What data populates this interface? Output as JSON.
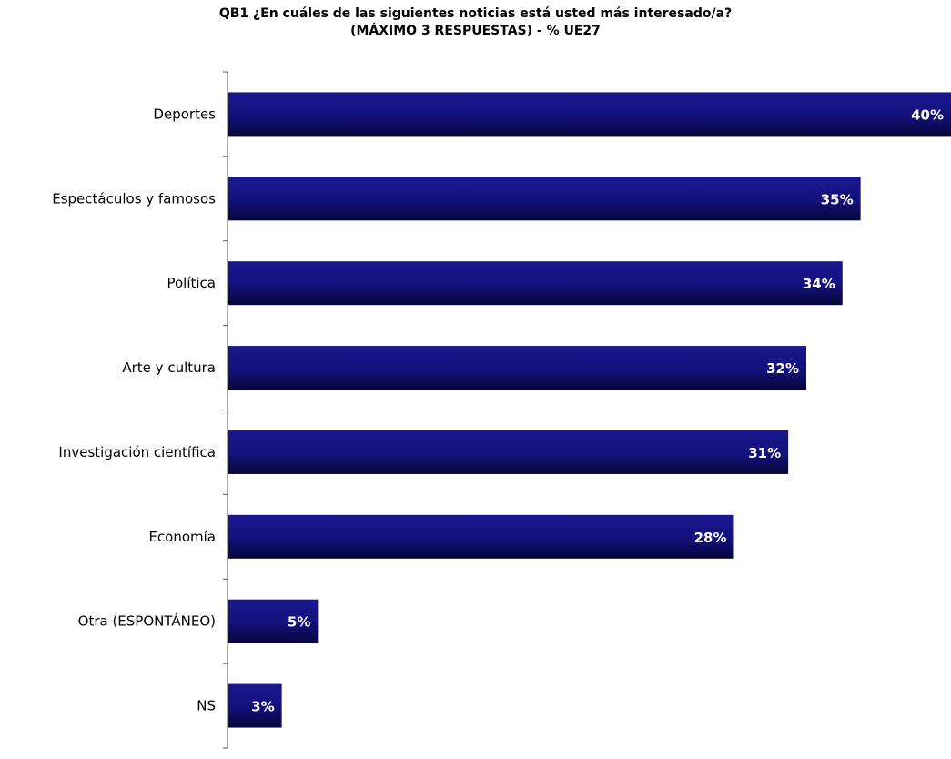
{
  "chart_data": {
    "type": "bar",
    "orientation": "horizontal",
    "title": [
      "QB1 ¿En cuáles de las siguientes noticias está usted más interesado/a?",
      "(MÁXIMO 3 RESPUESTAS) - % UE27"
    ],
    "categories": [
      "Deportes",
      "Espectáculos y famosos",
      "Política",
      "Arte y cultura",
      "Investigación científica",
      "Economía",
      "Otra (ESPONTÁNEO)",
      "NS"
    ],
    "values": [
      40,
      35,
      34,
      32,
      31,
      28,
      5,
      3
    ],
    "data_labels": [
      "40%",
      "35%",
      "34%",
      "32%",
      "31%",
      "28%",
      "5%",
      "3%"
    ],
    "xlim": [
      0,
      40
    ],
    "grid": false,
    "legend": "none",
    "colors": {
      "bar_main": "#14127a",
      "bar_edge": "#05052e",
      "label_text": "#ffffff",
      "axis": "#555555"
    }
  }
}
